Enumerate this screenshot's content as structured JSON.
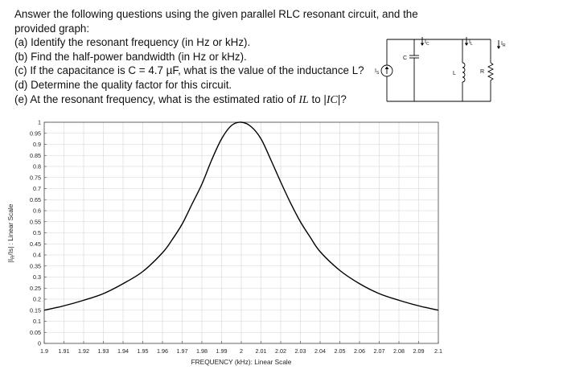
{
  "problem": {
    "intro_line1": "Answer the following questions using the given parallel RLC resonant circuit, and the",
    "intro_line2": "provided graph:",
    "q_a": "(a) Identify the resonant frequency (in Hz or kHz).",
    "q_b": "(b) Find the half-power bandwidth (in Hz or kHz).",
    "q_c": "(c) If the capacitance is C = 4.7 µF, what is the value of the inductance L?",
    "q_d": "(d) Determine the quality factor for this circuit.",
    "q_e_prefix": "(e) At the resonant frequency, what is the estimated ratio of ",
    "q_e_num": "IL",
    "q_e_mid": " to |",
    "q_e_den": "IC",
    "q_e_suffix": "|?"
  },
  "circuit": {
    "source_label": "I",
    "source_sub": "S",
    "capacitor_label": "C",
    "capacitor_current": "I",
    "capacitor_current_sub": "C",
    "inductor_label": "L",
    "inductor_current": "I",
    "inductor_current_sub": "L",
    "resistor_label": "R",
    "resistor_current": "I",
    "resistor_current_sub": "R"
  },
  "chart_data": {
    "type": "line",
    "xlabel": "FREQUENCY (kHz): Linear Scale",
    "ylabel": "|I",
    "ylabel_sub": "R",
    "ylabel_rest": "/Is| : Linear Scale",
    "xlim": [
      1.9,
      2.1
    ],
    "ylim": [
      0,
      1
    ],
    "x_ticks": [
      "1.9",
      "1.91",
      "1.92",
      "1.93",
      "1.94",
      "1.95",
      "1.96",
      "1.97",
      "1.98",
      "1.99",
      "2",
      "2.01",
      "2.02",
      "2.03",
      "2.04",
      "2.05",
      "2.06",
      "2.07",
      "2.08",
      "2.09",
      "2.1"
    ],
    "y_ticks": [
      "0",
      "0.05",
      "0.1",
      "0.15",
      "0.2",
      "0.25",
      "0.3",
      "0.35",
      "0.4",
      "0.45",
      "0.5",
      "0.55",
      "0.6",
      "0.65",
      "0.7",
      "0.75",
      "0.8",
      "0.85",
      "0.9",
      "0.95",
      "1"
    ],
    "grid": true,
    "series": [
      {
        "color": "#000000",
        "x": [
          1.9,
          1.91,
          1.92,
          1.93,
          1.94,
          1.95,
          1.96,
          1.965,
          1.97,
          1.975,
          1.98,
          1.985,
          1.99,
          1.995,
          2.0,
          2.005,
          2.01,
          2.015,
          2.02,
          2.025,
          2.03,
          2.035,
          2.04,
          2.05,
          2.06,
          2.07,
          2.08,
          2.09,
          2.1
        ],
        "y": [
          0.15,
          0.17,
          0.195,
          0.225,
          0.27,
          0.325,
          0.41,
          0.47,
          0.54,
          0.63,
          0.72,
          0.83,
          0.925,
          0.985,
          1.0,
          0.98,
          0.925,
          0.83,
          0.73,
          0.635,
          0.55,
          0.48,
          0.415,
          0.33,
          0.27,
          0.225,
          0.195,
          0.17,
          0.15
        ]
      }
    ]
  }
}
